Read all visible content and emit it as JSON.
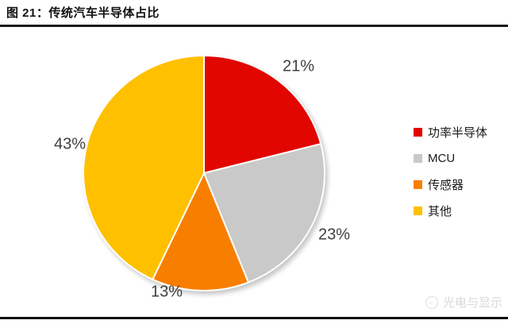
{
  "header": {
    "title": "图 21：传统汽车半导体占比"
  },
  "chart_data": {
    "type": "pie",
    "title": "传统汽车半导体占比",
    "categories": [
      "功率半导体",
      "MCU",
      "传感器",
      "其他"
    ],
    "values": [
      21,
      23,
      13,
      43
    ],
    "percent_labels": [
      "21%",
      "23%",
      "13%",
      "43%"
    ],
    "colors": [
      "#e10600",
      "#c9c9c9",
      "#f87e00",
      "#ffc000"
    ],
    "start_angle": "top",
    "direction": "clockwise",
    "legend_position": "right",
    "label_color": "#3f3f3f",
    "slice_border_color": "#ffffff"
  },
  "watermark": {
    "icon": "wechat-account-logo-icon",
    "text": "光电与显示"
  }
}
